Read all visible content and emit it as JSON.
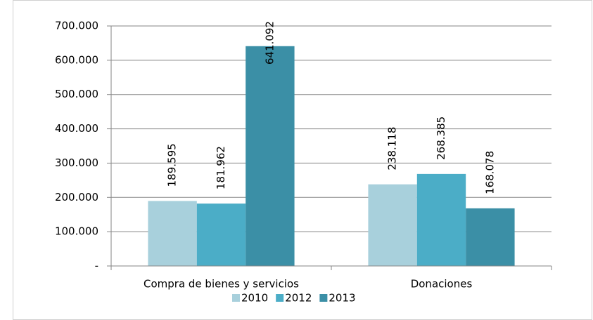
{
  "chart_data": {
    "type": "bar",
    "categories": [
      "Compra de bienes y servicios",
      "Donaciones"
    ],
    "series": [
      {
        "name": "2010",
        "color": "#a8d0dc",
        "values": [
          189595,
          238118
        ],
        "value_labels": [
          "189.595",
          "238.118"
        ]
      },
      {
        "name": "2012",
        "color": "#4badc7",
        "values": [
          181962,
          268385
        ],
        "value_labels": [
          "181.962",
          "268.385"
        ]
      },
      {
        "name": "2013",
        "color": "#3b8fa6",
        "values": [
          641092,
          168078
        ],
        "value_labels": [
          "641.092",
          "168.078"
        ]
      }
    ],
    "ylim": [
      0,
      700000
    ],
    "yticks": [
      {
        "value": 0,
        "label": "-"
      },
      {
        "value": 100000,
        "label": "100.000"
      },
      {
        "value": 200000,
        "label": "200.000"
      },
      {
        "value": 300000,
        "label": "300.000"
      },
      {
        "value": 400000,
        "label": "400.000"
      },
      {
        "value": 500000,
        "label": "500.000"
      },
      {
        "value": 600000,
        "label": "600.000"
      },
      {
        "value": 700000,
        "label": "700.000"
      }
    ],
    "grid": true,
    "legend": "bottom"
  }
}
